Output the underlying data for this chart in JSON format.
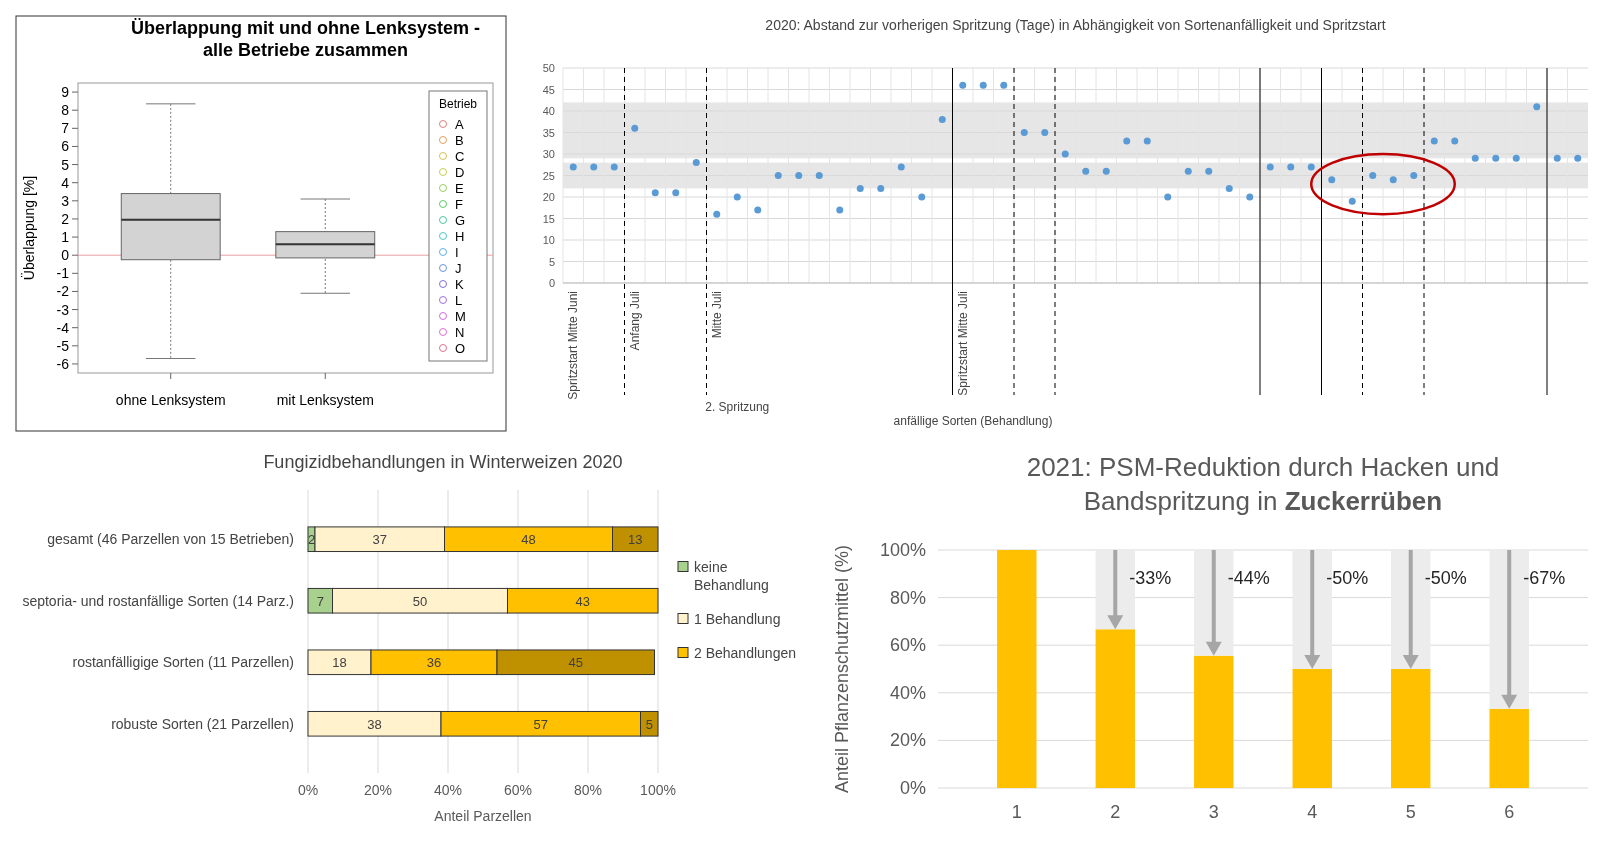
{
  "chart_data": [
    {
      "type": "box",
      "title": "Überlappung mit und ohne Lenksystem - alle Betriebe zusammen",
      "ylabel": "Überlappung [%]",
      "categories": [
        "ohne Lenksystem",
        "mit Lenksystem"
      ],
      "boxes": [
        {
          "low": -5.7,
          "q1": -0.25,
          "median": 1.95,
          "q3": 3.4,
          "high": 8.35
        },
        {
          "low": -2.1,
          "q1": -0.15,
          "median": 0.6,
          "q3": 1.3,
          "high": 3.1
        }
      ],
      "ylim": [
        -6.5,
        9.5
      ],
      "yticks": [
        -6,
        -5,
        -4,
        -3,
        -2,
        -1,
        0,
        1,
        2,
        3,
        4,
        5,
        6,
        7,
        8,
        9
      ],
      "ref_lines": [
        {
          "axis": "y",
          "value": 0,
          "color": "#e8a0a0"
        }
      ],
      "legend": "right",
      "legend_title": "Betrieb",
      "marker": "circle",
      "series": [
        {
          "name": "A",
          "color": "#e0807a",
          "values": [
            null,
            null
          ]
        },
        {
          "name": "B",
          "color": "#e0a060",
          "values": [
            null,
            null
          ]
        },
        {
          "name": "C",
          "color": "#d8c050",
          "values": [
            null,
            null
          ]
        },
        {
          "name": "D",
          "color": "#c8d050",
          "values": [
            null,
            null
          ]
        },
        {
          "name": "E",
          "color": "#98d060",
          "values": [
            null,
            null
          ]
        },
        {
          "name": "F",
          "color": "#60c870",
          "values": [
            null,
            null
          ]
        },
        {
          "name": "G",
          "color": "#50c8a0",
          "values": [
            null,
            null
          ]
        },
        {
          "name": "H",
          "color": "#50c8c8",
          "values": [
            null,
            null
          ]
        },
        {
          "name": "I",
          "color": "#60b0e0",
          "values": [
            null,
            null
          ]
        },
        {
          "name": "J",
          "color": "#7090e0",
          "values": [
            null,
            null
          ]
        },
        {
          "name": "K",
          "color": "#8070e0",
          "values": [
            null,
            null
          ]
        },
        {
          "name": "L",
          "color": "#a070e0",
          "values": [
            null,
            null
          ]
        },
        {
          "name": "M",
          "color": "#c870e0",
          "values": [
            null,
            null
          ]
        },
        {
          "name": "N",
          "color": "#e070c8",
          "values": [
            null,
            null
          ]
        },
        {
          "name": "O",
          "color": "#e07090",
          "values": [
            null,
            null
          ]
        }
      ]
    },
    {
      "type": "scatter",
      "title": "2020: Abstand zur vorherigen Spritzung (Tage) in Abhängigkeit von Sortenanfälligkeit und Spritzstart",
      "color": "#5b9bd5",
      "marker": "circle",
      "categories": [
        "Spritzstart Mitte Juni",
        null,
        null,
        "Anfang Juli",
        null,
        null,
        null,
        "Mitte Juli",
        null,
        null,
        null,
        null,
        null,
        null,
        null,
        null,
        null,
        null,
        null,
        "Spritzstart Mitte Juli",
        null,
        null,
        null,
        null,
        null,
        null,
        null,
        null,
        null,
        null,
        null,
        null,
        null,
        null,
        null,
        null,
        null,
        null,
        null,
        null,
        null,
        null,
        null,
        null,
        null,
        null,
        null,
        null,
        null,
        null
      ],
      "values": [
        27,
        27,
        27,
        36,
        21,
        21,
        28,
        16,
        20,
        17,
        25,
        25,
        25,
        17,
        22,
        22,
        27,
        20,
        38,
        46,
        46,
        46,
        35,
        35,
        30,
        26,
        26,
        33,
        33,
        20,
        26,
        26,
        22,
        20,
        27,
        27,
        27,
        24,
        19,
        25,
        24,
        25,
        33,
        33,
        29,
        29,
        29,
        41,
        29,
        29
      ],
      "ylim": [
        0,
        50
      ],
      "yticks": [
        0,
        5,
        10,
        15,
        20,
        25,
        30,
        35,
        40,
        45,
        50
      ],
      "grid": true,
      "bands": [
        {
          "axis": "y",
          "from": 22,
          "to": 28,
          "color": "#e6e6e6"
        },
        {
          "axis": "y",
          "from": 29,
          "to": 42,
          "color": "#e6e6e6"
        }
      ],
      "annotations": [
        "2. Spritzung",
        "anfällige Sorten (Behandlung)"
      ]
    },
    {
      "type": "bar",
      "orientation": "horizontal",
      "stacked": true,
      "title": "Fungizidbehandlungen in Winterweizen 2020",
      "xlabel": "Anteil Parzellen",
      "categories": [
        "gesamt (46 Parzellen von 15 Betrieben)",
        "septoria- und rostanfällige Sorten (14 Parz.)",
        "rostanfälligige Sorten (11 Parzellen)",
        "robuste Sorten (21 Parzellen)"
      ],
      "series": [
        {
          "name": "keine Behandlung",
          "color": "#a9d18e",
          "values": [
            2,
            7,
            null,
            null
          ]
        },
        {
          "name": "1 Behandlung",
          "color": "#fff2cc",
          "values": [
            37,
            50,
            18,
            38
          ]
        },
        {
          "name": "2 Behandlungen",
          "color": "#ffc000",
          "values": [
            48,
            43,
            36,
            57
          ]
        },
        {
          "color": "#bf9000",
          "values": [
            13,
            null,
            45,
            5
          ]
        }
      ],
      "xlim": [
        0,
        100
      ],
      "xticks": [
        {
          "value": 0,
          "label": "0%"
        },
        {
          "value": 20,
          "label": "20%"
        },
        {
          "value": 40,
          "label": "40%"
        },
        {
          "value": 60,
          "label": "60%"
        },
        {
          "value": 80,
          "label": "80%"
        },
        {
          "value": 100,
          "label": "100%"
        }
      ],
      "grid": "x",
      "legend": "right",
      "data_labels": true
    },
    {
      "type": "bar",
      "stacked": true,
      "title": "2021: PSM-Reduktion durch Hacken und Bandspritzung in Zuckerrüben",
      "ylabel": "Anteil Pflanzenschutzmittel (%)",
      "categories": [
        "1",
        "2",
        "3",
        "4",
        "5",
        "6"
      ],
      "series": [
        {
          "color": "#ffc000",
          "values": [
            100,
            66.7,
            55.6,
            50,
            50,
            33.3
          ]
        },
        {
          "color": "#ececec",
          "values": [
            null,
            33.3,
            44.4,
            50,
            50,
            66.7
          ]
        }
      ],
      "ylim": [
        0,
        100
      ],
      "yticks": [
        {
          "value": 0,
          "label": "0%"
        },
        {
          "value": 20,
          "label": "20%"
        },
        {
          "value": 40,
          "label": "40%"
        },
        {
          "value": 60,
          "label": "60%"
        },
        {
          "value": 80,
          "label": "80%"
        },
        {
          "value": 100,
          "label": "100%"
        }
      ],
      "grid": "y",
      "annotations": [
        {
          "text": "-33%",
          "x": "2",
          "y": 66.7
        },
        "-44%",
        "-50%",
        "-50%",
        "-67%"
      ]
    }
  ]
}
